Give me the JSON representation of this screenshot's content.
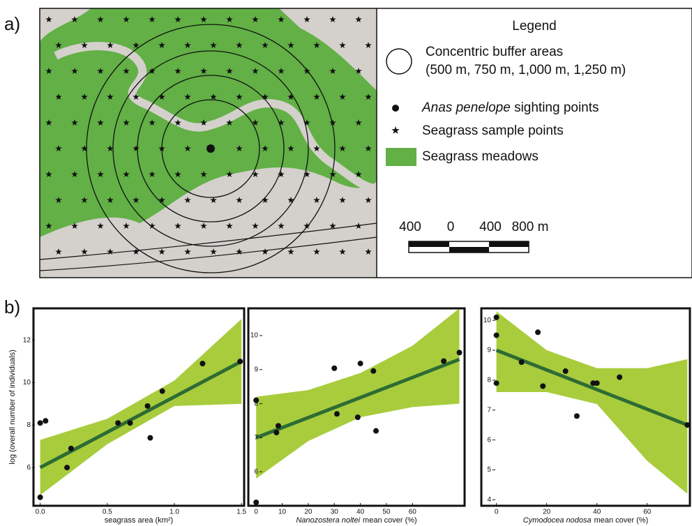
{
  "panel_labels": [
    "a)",
    "b)"
  ],
  "map": {
    "legend": {
      "title": "Legend",
      "buffer": [
        "Concentric buffer areas",
        "(500 m, 750 m, 1,000 m, 1,250 m)"
      ],
      "sighting": {
        "species": "Anas penelope",
        "text": "sighting points"
      },
      "sample": "Seagrass sample points",
      "meadows": "Seagrass meadows"
    },
    "scale": [
      "400",
      "0",
      "400",
      "800 m"
    ]
  },
  "chart_data": [
    {
      "type": "scatter",
      "ylabel": "log (overall number of individuals)",
      "xlabel": {
        "text": "seagrass area (km²)"
      },
      "x": [
        0.0,
        0.0,
        0.04,
        0.23,
        0.2,
        0.58,
        0.67,
        0.82,
        0.8,
        0.91,
        1.21,
        1.49
      ],
      "values": [
        4.6,
        8.1,
        8.2,
        6.9,
        6.0,
        8.1,
        8.1,
        7.4,
        8.9,
        9.6,
        10.9,
        11.0
      ],
      "color": "#111111",
      "fit": {
        "x": [
          0.0,
          1.5
        ],
        "y": [
          6.0,
          11.0
        ],
        "color": "#2e6b34"
      },
      "band": {
        "x": [
          0.0,
          0.5,
          1.0,
          1.5
        ],
        "upper": [
          7.3,
          8.3,
          10.1,
          13.0
        ],
        "lower": [
          4.7,
          7.1,
          8.9,
          9.0
        ],
        "color": "#a8cc3c"
      },
      "xlim": [
        -0.05,
        1.52
      ],
      "ylim": [
        4.2,
        13.5
      ],
      "xticks": [
        {
          "value": 0,
          "label": "0.0"
        },
        {
          "value": 0.5,
          "label": "0.5"
        },
        {
          "value": 1,
          "label": "1.0"
        },
        {
          "value": 1.5,
          "label": "1.5"
        }
      ],
      "yticks": [
        6,
        8,
        10,
        12
      ]
    },
    {
      "type": "scatter",
      "xlabel": {
        "species": "Nanozostera noltei",
        "text": "mean cover (%)"
      },
      "x": [
        0,
        0,
        8.5,
        7.8,
        30,
        31,
        39,
        40,
        45,
        46,
        72,
        78
      ],
      "values": [
        8.1,
        5.1,
        7.35,
        7.15,
        9.04,
        7.7,
        7.6,
        9.18,
        8.96,
        7.2,
        9.25,
        9.5
      ],
      "color": "#111111",
      "fit": {
        "x": [
          0,
          78
        ],
        "y": [
          7.0,
          9.3
        ],
        "color": "#2e6b34"
      },
      "band": {
        "x": [
          0,
          20,
          40,
          60,
          78
        ],
        "upper": [
          8.2,
          8.4,
          8.9,
          9.7,
          10.8
        ],
        "lower": [
          5.8,
          6.9,
          7.6,
          7.9,
          8.0
        ],
        "color": "#a8cc3c"
      },
      "xlim": [
        -3,
        80
      ],
      "ylim": [
        5.0,
        10.8
      ],
      "xticks": [
        0,
        10,
        20,
        30,
        40,
        50,
        60
      ],
      "yticks": [
        6,
        7,
        8,
        9,
        10
      ]
    },
    {
      "type": "scatter",
      "xlabel": {
        "species": "Cymodocea nodosa",
        "text": "mean cover (%)"
      },
      "x": [
        0,
        0,
        0,
        16.5,
        10,
        18.5,
        27.5,
        32,
        38.5,
        40,
        49,
        76
      ],
      "values": [
        10.1,
        9.5,
        7.9,
        9.6,
        8.6,
        7.8,
        8.3,
        6.8,
        7.9,
        7.9,
        8.1,
        6.5
      ],
      "color": "#111111",
      "fit": {
        "x": [
          0,
          76
        ],
        "y": [
          9.0,
          6.5
        ],
        "color": "#2e6b34"
      },
      "band": {
        "x": [
          0,
          20,
          40,
          60,
          76
        ],
        "upper": [
          10.3,
          9.0,
          8.4,
          8.4,
          8.7
        ],
        "lower": [
          7.6,
          7.6,
          7.2,
          5.3,
          4.2
        ],
        "color": "#a8cc3c"
      },
      "xlim": [
        -6,
        77
      ],
      "ylim": [
        3.8,
        10.4
      ],
      "xticks": [
        0,
        20,
        40,
        60
      ],
      "yticks": [
        4,
        5,
        6,
        7,
        8,
        9,
        10
      ]
    }
  ]
}
